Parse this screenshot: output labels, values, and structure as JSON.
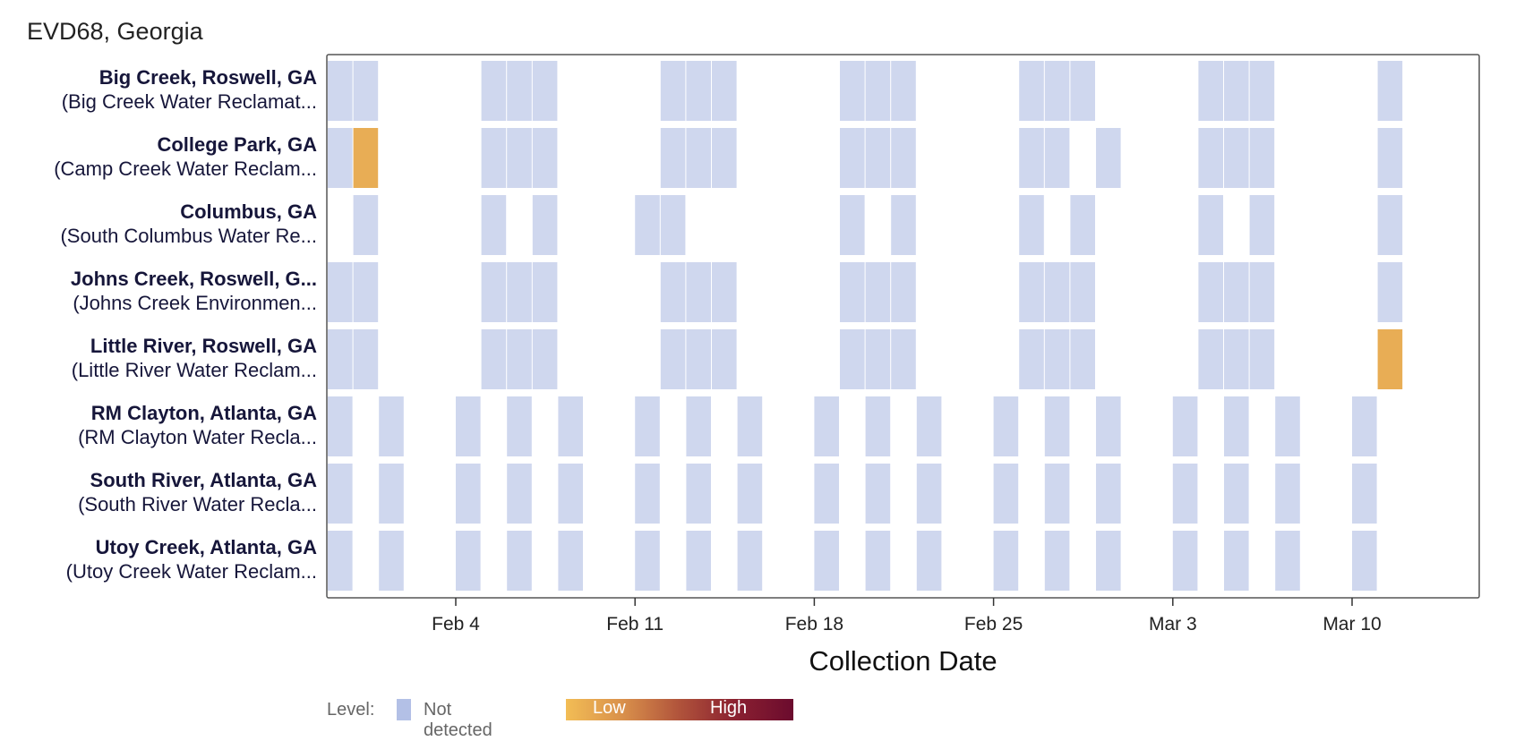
{
  "title": "EVD68, Georgia",
  "colors": {
    "not_detected": "#cfd7ee",
    "low": "#e8ad55",
    "high": "#6b0b2e",
    "frame": "#555555"
  },
  "rows": [
    {
      "site": "Big Creek, Roswell, GA",
      "facility": "(Big Creek Water Reclamat..."
    },
    {
      "site": "College Park, GA",
      "facility": "(Camp Creek Water Reclam..."
    },
    {
      "site": "Columbus, GA",
      "facility": "(South Columbus Water Re..."
    },
    {
      "site": "Johns Creek, Roswell, G...",
      "facility": "(Johns Creek Environmen..."
    },
    {
      "site": "Little River, Roswell, GA",
      "facility": "(Little River Water Reclam..."
    },
    {
      "site": "RM Clayton, Atlanta, GA",
      "facility": "(RM Clayton Water Recla..."
    },
    {
      "site": "South River, Atlanta, GA",
      "facility": "(South River Water Recla..."
    },
    {
      "site": "Utoy Creek, Atlanta, GA",
      "facility": "(Utoy Creek Water Reclam..."
    }
  ],
  "legend": {
    "label": "Level:",
    "not_detected": "Not detected",
    "low": "Low",
    "high": "High"
  },
  "chart_data": {
    "type": "heatmap",
    "title": "EVD68, Georgia",
    "xlabel": "Collection Date",
    "ylabel": "",
    "x_ticks": [
      "Feb 4",
      "Feb 11",
      "Feb 18",
      "Feb 25",
      "Mar 3",
      "Mar 10"
    ],
    "xlim": [
      "Jan 30",
      "Mar 15"
    ],
    "legend_position": "bottom",
    "series": [
      {
        "name": "Big Creek, Roswell, GA",
        "samples": [
          {
            "start": "Jan 30",
            "end": "Jan 31",
            "level": "Not detected"
          },
          {
            "start": "Feb 5",
            "end": "Feb 7",
            "level": "Not detected"
          },
          {
            "start": "Feb 12",
            "end": "Feb 14",
            "level": "Not detected"
          },
          {
            "start": "Feb 19",
            "end": "Feb 21",
            "level": "Not detected"
          },
          {
            "start": "Feb 26",
            "end": "Feb 28",
            "level": "Not detected"
          },
          {
            "start": "Mar 4",
            "end": "Mar 6",
            "level": "Not detected"
          },
          {
            "start": "Mar 11",
            "end": "Mar 11",
            "level": "Not detected"
          }
        ]
      },
      {
        "name": "College Park, GA",
        "samples": [
          {
            "start": "Jan 30",
            "end": "Jan 30",
            "level": "Not detected"
          },
          {
            "start": "Jan 31",
            "end": "Jan 31",
            "level": "Low"
          },
          {
            "start": "Feb 5",
            "end": "Feb 7",
            "level": "Not detected"
          },
          {
            "start": "Feb 12",
            "end": "Feb 14",
            "level": "Not detected"
          },
          {
            "start": "Feb 19",
            "end": "Feb 21",
            "level": "Not detected"
          },
          {
            "start": "Feb 26",
            "end": "Feb 27",
            "level": "Not detected"
          },
          {
            "start": "Feb 29",
            "end": "Feb 29",
            "level": "Not detected"
          },
          {
            "start": "Mar 4",
            "end": "Mar 6",
            "level": "Not detected"
          },
          {
            "start": "Mar 11",
            "end": "Mar 11",
            "level": "Not detected"
          }
        ]
      },
      {
        "name": "Columbus, GA",
        "samples": [
          {
            "start": "Jan 31",
            "end": "Jan 31",
            "level": "Not detected"
          },
          {
            "start": "Feb 5",
            "end": "Feb 5",
            "level": "Not detected"
          },
          {
            "start": "Feb 7",
            "end": "Feb 7",
            "level": "Not detected"
          },
          {
            "start": "Feb 11",
            "end": "Feb 12",
            "level": "Not detected"
          },
          {
            "start": "Feb 19",
            "end": "Feb 19",
            "level": "Not detected"
          },
          {
            "start": "Feb 21",
            "end": "Feb 21",
            "level": "Not detected"
          },
          {
            "start": "Feb 26",
            "end": "Feb 26",
            "level": "Not detected"
          },
          {
            "start": "Feb 28",
            "end": "Feb 28",
            "level": "Not detected"
          },
          {
            "start": "Mar 4",
            "end": "Mar 4",
            "level": "Not detected"
          },
          {
            "start": "Mar 6",
            "end": "Mar 6",
            "level": "Not detected"
          },
          {
            "start": "Mar 11",
            "end": "Mar 11",
            "level": "Not detected"
          }
        ]
      },
      {
        "name": "Johns Creek, Roswell, G...",
        "samples": [
          {
            "start": "Jan 30",
            "end": "Jan 31",
            "level": "Not detected"
          },
          {
            "start": "Feb 5",
            "end": "Feb 7",
            "level": "Not detected"
          },
          {
            "start": "Feb 12",
            "end": "Feb 14",
            "level": "Not detected"
          },
          {
            "start": "Feb 19",
            "end": "Feb 21",
            "level": "Not detected"
          },
          {
            "start": "Feb 26",
            "end": "Feb 28",
            "level": "Not detected"
          },
          {
            "start": "Mar 4",
            "end": "Mar 6",
            "level": "Not detected"
          },
          {
            "start": "Mar 11",
            "end": "Mar 11",
            "level": "Not detected"
          }
        ]
      },
      {
        "name": "Little River, Roswell, GA",
        "samples": [
          {
            "start": "Jan 30",
            "end": "Jan 31",
            "level": "Not detected"
          },
          {
            "start": "Feb 5",
            "end": "Feb 7",
            "level": "Not detected"
          },
          {
            "start": "Feb 12",
            "end": "Feb 14",
            "level": "Not detected"
          },
          {
            "start": "Feb 19",
            "end": "Feb 21",
            "level": "Not detected"
          },
          {
            "start": "Feb 26",
            "end": "Feb 28",
            "level": "Not detected"
          },
          {
            "start": "Mar 4",
            "end": "Mar 6",
            "level": "Not detected"
          },
          {
            "start": "Mar 11",
            "end": "Mar 11",
            "level": "Low"
          }
        ]
      },
      {
        "name": "RM Clayton, Atlanta, GA",
        "samples": [
          {
            "start": "Jan 30",
            "end": "Jan 30",
            "level": "Not detected"
          },
          {
            "start": "Feb 1",
            "end": "Feb 1",
            "level": "Not detected"
          },
          {
            "start": "Feb 4",
            "end": "Feb 4",
            "level": "Not detected"
          },
          {
            "start": "Feb 6",
            "end": "Feb 6",
            "level": "Not detected"
          },
          {
            "start": "Feb 8",
            "end": "Feb 8",
            "level": "Not detected"
          },
          {
            "start": "Feb 11",
            "end": "Feb 11",
            "level": "Not detected"
          },
          {
            "start": "Feb 13",
            "end": "Feb 13",
            "level": "Not detected"
          },
          {
            "start": "Feb 15",
            "end": "Feb 15",
            "level": "Not detected"
          },
          {
            "start": "Feb 18",
            "end": "Feb 18",
            "level": "Not detected"
          },
          {
            "start": "Feb 20",
            "end": "Feb 20",
            "level": "Not detected"
          },
          {
            "start": "Feb 22",
            "end": "Feb 22",
            "level": "Not detected"
          },
          {
            "start": "Feb 25",
            "end": "Feb 25",
            "level": "Not detected"
          },
          {
            "start": "Feb 27",
            "end": "Feb 27",
            "level": "Not detected"
          },
          {
            "start": "Feb 29",
            "end": "Feb 29",
            "level": "Not detected"
          },
          {
            "start": "Mar 3",
            "end": "Mar 3",
            "level": "Not detected"
          },
          {
            "start": "Mar 5",
            "end": "Mar 5",
            "level": "Not detected"
          },
          {
            "start": "Mar 7",
            "end": "Mar 7",
            "level": "Not detected"
          },
          {
            "start": "Mar 10",
            "end": "Mar 10",
            "level": "Not detected"
          }
        ]
      },
      {
        "name": "South River, Atlanta, GA",
        "samples": [
          {
            "start": "Jan 30",
            "end": "Jan 30",
            "level": "Not detected"
          },
          {
            "start": "Feb 1",
            "end": "Feb 1",
            "level": "Not detected"
          },
          {
            "start": "Feb 4",
            "end": "Feb 4",
            "level": "Not detected"
          },
          {
            "start": "Feb 6",
            "end": "Feb 6",
            "level": "Not detected"
          },
          {
            "start": "Feb 8",
            "end": "Feb 8",
            "level": "Not detected"
          },
          {
            "start": "Feb 11",
            "end": "Feb 11",
            "level": "Not detected"
          },
          {
            "start": "Feb 13",
            "end": "Feb 13",
            "level": "Not detected"
          },
          {
            "start": "Feb 15",
            "end": "Feb 15",
            "level": "Not detected"
          },
          {
            "start": "Feb 18",
            "end": "Feb 18",
            "level": "Not detected"
          },
          {
            "start": "Feb 20",
            "end": "Feb 20",
            "level": "Not detected"
          },
          {
            "start": "Feb 22",
            "end": "Feb 22",
            "level": "Not detected"
          },
          {
            "start": "Feb 25",
            "end": "Feb 25",
            "level": "Not detected"
          },
          {
            "start": "Feb 27",
            "end": "Feb 27",
            "level": "Not detected"
          },
          {
            "start": "Feb 29",
            "end": "Feb 29",
            "level": "Not detected"
          },
          {
            "start": "Mar 3",
            "end": "Mar 3",
            "level": "Not detected"
          },
          {
            "start": "Mar 5",
            "end": "Mar 5",
            "level": "Not detected"
          },
          {
            "start": "Mar 7",
            "end": "Mar 7",
            "level": "Not detected"
          },
          {
            "start": "Mar 10",
            "end": "Mar 10",
            "level": "Not detected"
          }
        ]
      },
      {
        "name": "Utoy Creek, Atlanta, GA",
        "samples": [
          {
            "start": "Jan 30",
            "end": "Jan 30",
            "level": "Not detected"
          },
          {
            "start": "Feb 1",
            "end": "Feb 1",
            "level": "Not detected"
          },
          {
            "start": "Feb 4",
            "end": "Feb 4",
            "level": "Not detected"
          },
          {
            "start": "Feb 6",
            "end": "Feb 6",
            "level": "Not detected"
          },
          {
            "start": "Feb 8",
            "end": "Feb 8",
            "level": "Not detected"
          },
          {
            "start": "Feb 11",
            "end": "Feb 11",
            "level": "Not detected"
          },
          {
            "start": "Feb 13",
            "end": "Feb 13",
            "level": "Not detected"
          },
          {
            "start": "Feb 15",
            "end": "Feb 15",
            "level": "Not detected"
          },
          {
            "start": "Feb 18",
            "end": "Feb 18",
            "level": "Not detected"
          },
          {
            "start": "Feb 20",
            "end": "Feb 20",
            "level": "Not detected"
          },
          {
            "start": "Feb 22",
            "end": "Feb 22",
            "level": "Not detected"
          },
          {
            "start": "Feb 25",
            "end": "Feb 25",
            "level": "Not detected"
          },
          {
            "start": "Feb 27",
            "end": "Feb 27",
            "level": "Not detected"
          },
          {
            "start": "Feb 29",
            "end": "Feb 29",
            "level": "Not detected"
          },
          {
            "start": "Mar 3",
            "end": "Mar 3",
            "level": "Not detected"
          },
          {
            "start": "Mar 5",
            "end": "Mar 5",
            "level": "Not detected"
          },
          {
            "start": "Mar 7",
            "end": "Mar 7",
            "level": "Not detected"
          },
          {
            "start": "Mar 10",
            "end": "Mar 10",
            "level": "Not detected"
          }
        ]
      }
    ]
  }
}
